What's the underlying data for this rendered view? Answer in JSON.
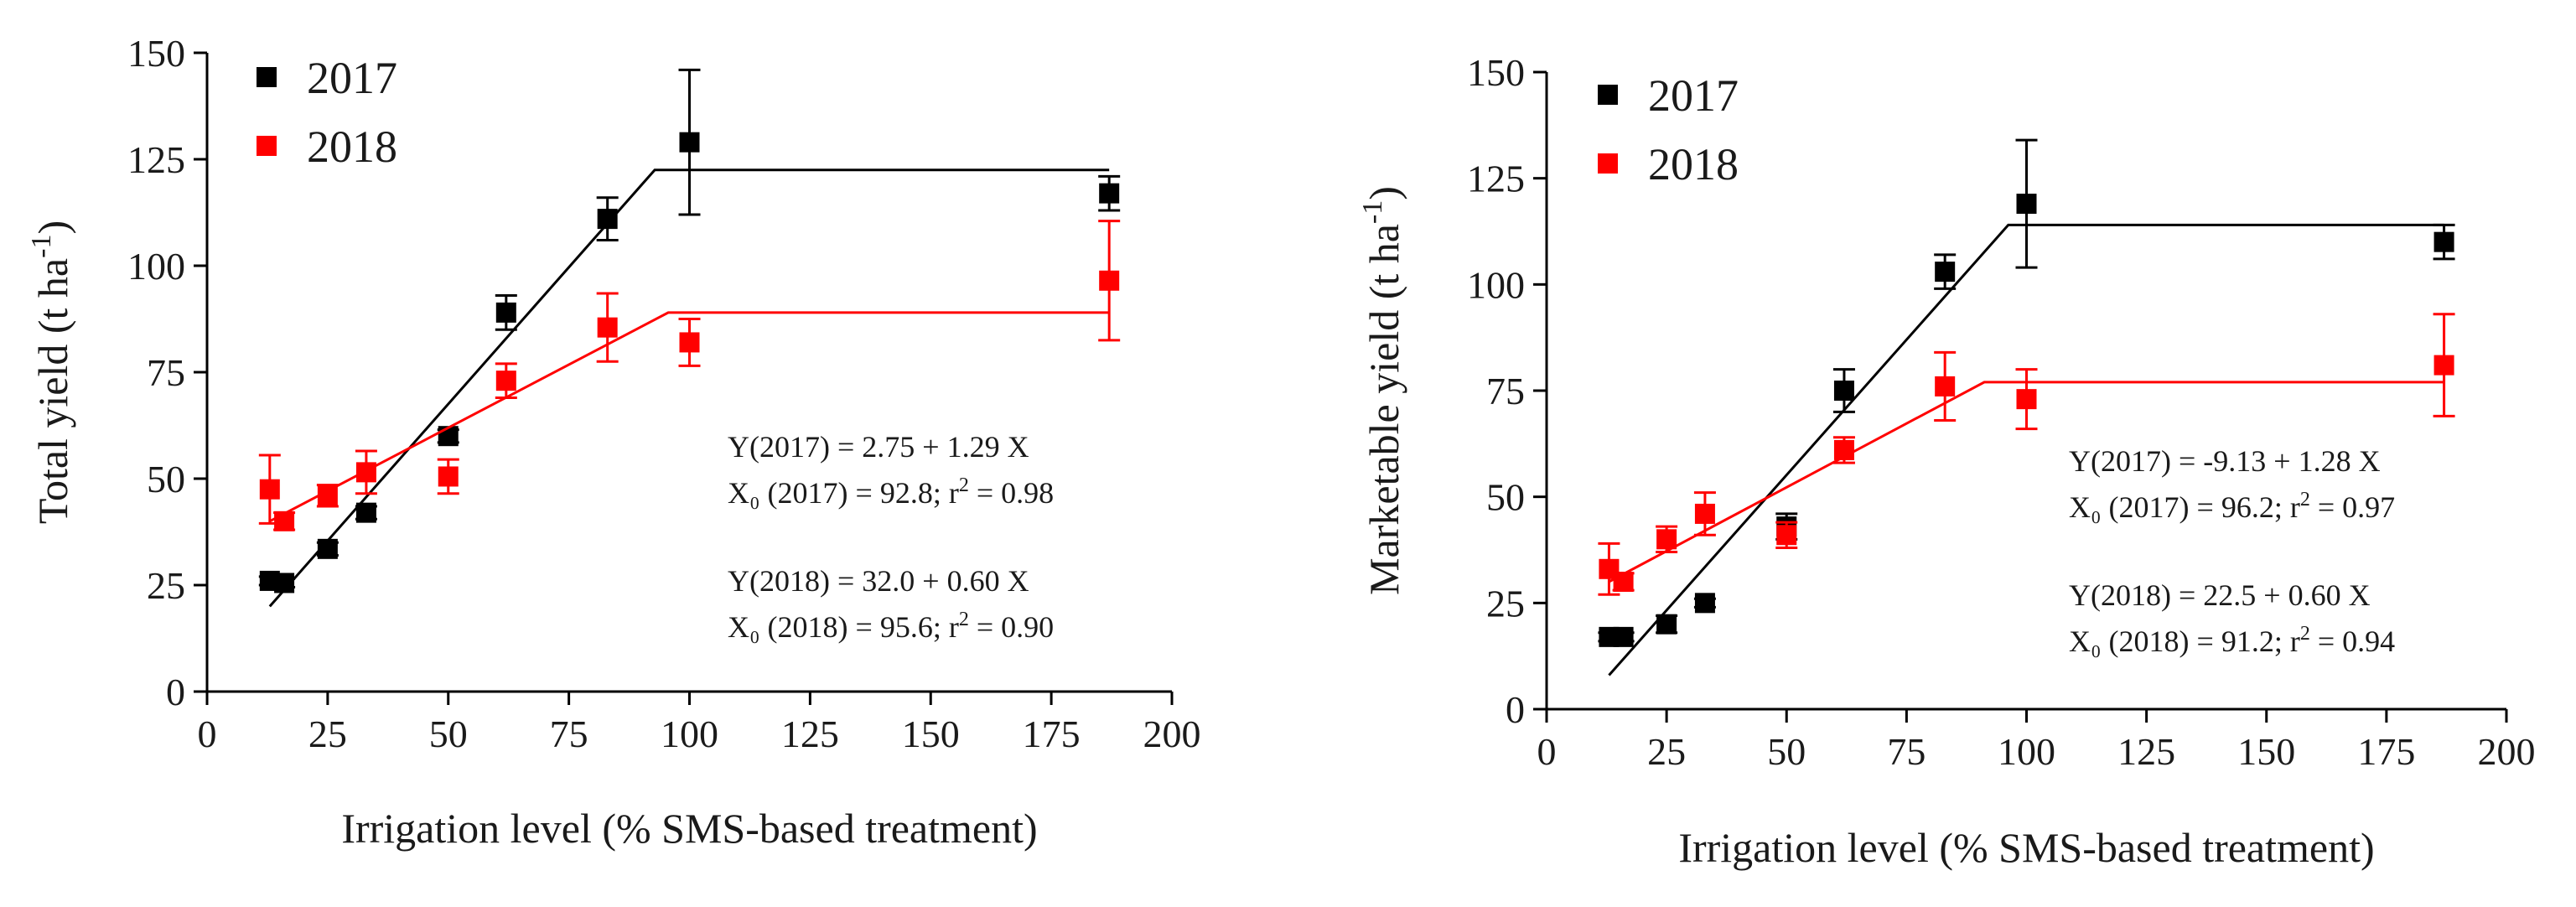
{
  "chart_data": [
    {
      "type": "scatter",
      "name": "total-yield",
      "xlabel": "Irrigation level (% SMS-based treatment)",
      "ylabel": "Total yield (t ha",
      "ylabel_sup": "-1",
      "ylabel_close": ")",
      "xlim": [
        0,
        200
      ],
      "ylim": [
        0,
        150
      ],
      "xticks": [
        0,
        25,
        50,
        75,
        100,
        125,
        150,
        175,
        200
      ],
      "yticks": [
        0,
        25,
        50,
        75,
        100,
        125,
        150
      ],
      "legend_position": "top-left",
      "series": [
        {
          "name": "2017",
          "color": "#000000",
          "points": [
            {
              "x": 13,
              "y": 26,
              "err": 1
            },
            {
              "x": 16,
              "y": 25.5,
              "err": 1
            },
            {
              "x": 25,
              "y": 33.5,
              "err": 1.5
            },
            {
              "x": 33,
              "y": 42,
              "err": 1.5
            },
            {
              "x": 50,
              "y": 60,
              "err": 1.5
            },
            {
              "x": 62,
              "y": 89,
              "err": 4
            },
            {
              "x": 83,
              "y": 111,
              "err": 5
            },
            {
              "x": 100,
              "y": 129,
              "err": 17
            },
            {
              "x": 187,
              "y": 117,
              "err": 4
            }
          ],
          "fit": {
            "start": [
              13,
              20
            ],
            "breakpoint": [
              92.8,
              122.5
            ],
            "end": [
              187,
              122.5
            ]
          }
        },
        {
          "name": "2018",
          "color": "#ff0000",
          "points": [
            {
              "x": 13,
              "y": 47.5,
              "err": 8
            },
            {
              "x": 16,
              "y": 40,
              "err": 2
            },
            {
              "x": 25,
              "y": 46,
              "err": 2.5
            },
            {
              "x": 33,
              "y": 51.5,
              "err": 5
            },
            {
              "x": 50,
              "y": 50.5,
              "err": 4
            },
            {
              "x": 62,
              "y": 73,
              "err": 4
            },
            {
              "x": 83,
              "y": 85.5,
              "err": 8
            },
            {
              "x": 100,
              "y": 82,
              "err": 5.5
            },
            {
              "x": 187,
              "y": 96.5,
              "err": 14
            }
          ],
          "fit": {
            "start": [
              13,
              40
            ],
            "breakpoint": [
              95.6,
              89
            ],
            "end": [
              187,
              89
            ]
          }
        }
      ],
      "equations": [
        {
          "pre": "Y(2017) = 2.75 + 1.29 X",
          "sup": "",
          "post": ""
        },
        {
          "pre": "X₀ (2017) = 92.8; r",
          "sup": "2",
          "post": " = 0.98"
        },
        {
          "pre": "Y(2018) = 32.0 + 0.60 X",
          "sup": "",
          "post": ""
        },
        {
          "pre": "X₀ (2018) = 95.6; r",
          "sup": "2",
          "post": " = 0.90"
        }
      ]
    },
    {
      "type": "scatter",
      "name": "marketable-yield",
      "xlabel": "Irrigation level (% SMS-based treatment)",
      "ylabel": "Marketable yield (t ha",
      "ylabel_sup": "-1",
      "ylabel_close": ")",
      "xlim": [
        0,
        200
      ],
      "ylim": [
        0,
        150
      ],
      "xticks": [
        0,
        25,
        50,
        75,
        100,
        125,
        150,
        175,
        200
      ],
      "yticks": [
        0,
        25,
        50,
        75,
        100,
        125,
        150
      ],
      "legend_position": "top-left",
      "series": [
        {
          "name": "2017",
          "color": "#000000",
          "points": [
            {
              "x": 13,
              "y": 17,
              "err": 1
            },
            {
              "x": 16,
              "y": 17,
              "err": 1
            },
            {
              "x": 25,
              "y": 20,
              "err": 2
            },
            {
              "x": 33,
              "y": 25,
              "err": 1
            },
            {
              "x": 50,
              "y": 43,
              "err": 3
            },
            {
              "x": 62,
              "y": 75,
              "err": 5
            },
            {
              "x": 83,
              "y": 103,
              "err": 4
            },
            {
              "x": 100,
              "y": 119,
              "err": 15
            },
            {
              "x": 187,
              "y": 110,
              "err": 4
            }
          ],
          "fit": {
            "start": [
              13,
              8
            ],
            "breakpoint": [
              96.2,
              114
            ],
            "end": [
              187,
              114
            ]
          }
        },
        {
          "name": "2018",
          "color": "#ff0000",
          "points": [
            {
              "x": 13,
              "y": 33,
              "err": 6
            },
            {
              "x": 16,
              "y": 30,
              "err": 2
            },
            {
              "x": 25,
              "y": 40,
              "err": 3
            },
            {
              "x": 33,
              "y": 46,
              "err": 5
            },
            {
              "x": 50,
              "y": 41,
              "err": 3
            },
            {
              "x": 62,
              "y": 61,
              "err": 3
            },
            {
              "x": 83,
              "y": 76,
              "err": 8
            },
            {
              "x": 100,
              "y": 73,
              "err": 7
            },
            {
              "x": 187,
              "y": 81,
              "err": 12
            }
          ],
          "fit": {
            "start": [
              13,
              30
            ],
            "breakpoint": [
              91.2,
              77
            ],
            "end": [
              187,
              77
            ]
          }
        }
      ],
      "equations": [
        {
          "pre": "Y(2017) = -9.13 + 1.28 X",
          "sup": "",
          "post": ""
        },
        {
          "pre": "X₀ (2017) = 96.2; r",
          "sup": "2",
          "post": " = 0.97"
        },
        {
          "pre": "Y(2018) = 22.5 + 0.60 X",
          "sup": "",
          "post": ""
        },
        {
          "pre": "X₀ (2018) = 91.2; r",
          "sup": "2",
          "post": " = 0.94"
        }
      ]
    }
  ]
}
